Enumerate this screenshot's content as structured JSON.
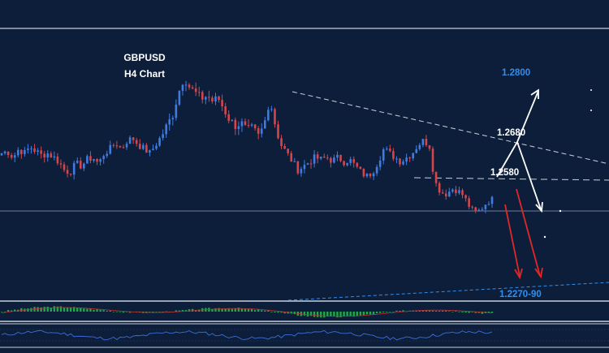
{
  "header": {
    "symbol": "GBPUSD",
    "timeframe": "H4 Chart"
  },
  "colors": {
    "background": "#0d1e3a",
    "bull_candle": "#3f7be0",
    "bear_candle": "#d6454a",
    "up_arrow": "#ffffff",
    "down_arrow": "#e02828",
    "target_label": "#2f8ff0",
    "level_label": "#ffffff",
    "panel_border": "#c8cfdb",
    "histogram": "#1faa4a",
    "signal_line": "#c03030",
    "rsi_line": "#3b6fd8"
  },
  "chart_data": {
    "type": "candlestick",
    "title": "GBPUSD H4 Chart",
    "ylim": [
      1.222,
      1.286
    ],
    "levels": [
      {
        "value": 1.28,
        "label": "1.2800",
        "color": "#2f8ff0"
      },
      {
        "value": 1.268,
        "label": "1.2680",
        "color": "#ffffff"
      },
      {
        "value": 1.258,
        "label": "1.2580",
        "color": "#ffffff"
      },
      {
        "value": 1.227,
        "label": "1.2270-90",
        "color": "#2f8ff0"
      }
    ],
    "close_path": [
      1.264,
      1.2645,
      1.263,
      1.265,
      1.264,
      1.2655,
      1.2645,
      1.2635,
      1.264,
      1.2632,
      1.262,
      1.26,
      1.2595,
      1.2615,
      1.261,
      1.2625,
      1.263,
      1.2615,
      1.264,
      1.265,
      1.2665,
      1.265,
      1.267,
      1.2675,
      1.266,
      1.265,
      1.264,
      1.266,
      1.268,
      1.27,
      1.272,
      1.276,
      1.279,
      1.277,
      1.276,
      1.275,
      1.2755,
      1.2745,
      1.275,
      1.273,
      1.271,
      1.27,
      1.2705,
      1.269,
      1.2695,
      1.268,
      1.27,
      1.275,
      1.27,
      1.266,
      1.264,
      1.262,
      1.26,
      1.261,
      1.262,
      1.263,
      1.2625,
      1.263,
      1.2622,
      1.263,
      1.262,
      1.2625,
      1.261,
      1.2595,
      1.2585,
      1.2595,
      1.262,
      1.265,
      1.264,
      1.263,
      1.262,
      1.263,
      1.264,
      1.266,
      1.267,
      1.266,
      1.257,
      1.254,
      1.2535,
      1.255,
      1.2545,
      1.253,
      1.25,
      1.248,
      1.249,
      1.251,
      1.252
    ],
    "trendlines": [
      {
        "label": "descending resistance",
        "style": "dashed",
        "from": [
          0.48,
          1.276
        ],
        "to": [
          1.0,
          1.262
        ]
      },
      {
        "label": "horizontal support",
        "style": "dashed",
        "from": [
          0.68,
          1.2585
        ],
        "to": [
          1.0,
          1.258
        ]
      },
      {
        "label": "rising support",
        "style": "dashed",
        "from": [
          0.47,
          1.224
        ],
        "to": [
          1.0,
          1.23
        ]
      }
    ],
    "current_price": 1.252,
    "scenarios": [
      {
        "direction": "up",
        "from": 1.262,
        "to": 1.28
      },
      {
        "direction": "down",
        "from": 1.268,
        "to": 1.252
      },
      {
        "direction": "down",
        "from": 1.252,
        "to": 1.227
      },
      {
        "direction": "down",
        "from": 1.256,
        "to": 1.227
      }
    ]
  }
}
